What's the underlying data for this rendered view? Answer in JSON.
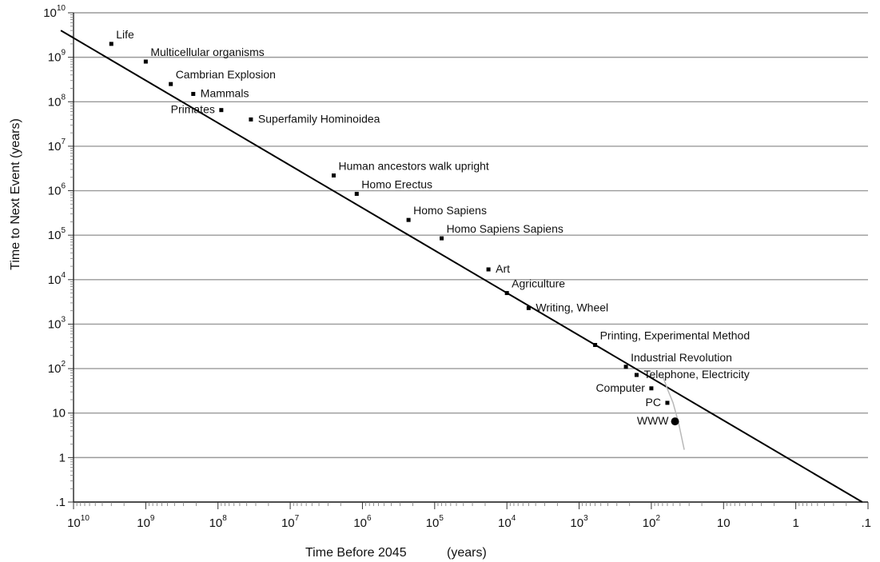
{
  "chart_data": {
    "type": "scatter",
    "title": "",
    "xlabel": "Time Before 2045",
    "xlabel_unit": "(years)",
    "ylabel": "Time to Next Event (years)",
    "x_scale": "log",
    "y_scale": "log",
    "x_reversed": true,
    "xlim": [
      10000000000,
      0.1
    ],
    "ylim": [
      0.1,
      10000000000
    ],
    "grid": "horizontal",
    "legend": "none",
    "x_ticks": [
      {
        "value": 10000000000,
        "base": "10",
        "exp": "10"
      },
      {
        "value": 1000000000,
        "base": "10",
        "exp": "9"
      },
      {
        "value": 100000000,
        "base": "10",
        "exp": "8"
      },
      {
        "value": 10000000,
        "base": "10",
        "exp": "7"
      },
      {
        "value": 1000000,
        "base": "10",
        "exp": "6"
      },
      {
        "value": 100000,
        "base": "10",
        "exp": "5"
      },
      {
        "value": 10000,
        "base": "10",
        "exp": "4"
      },
      {
        "value": 1000,
        "base": "10",
        "exp": "3"
      },
      {
        "value": 100,
        "base": "10",
        "exp": "2"
      },
      {
        "value": 10,
        "base": "10",
        "exp": ""
      },
      {
        "value": 1,
        "base": "1",
        "exp": ""
      },
      {
        "value": 0.1,
        "base": ".1",
        "exp": ""
      }
    ],
    "y_ticks": [
      {
        "value": 10000000000,
        "base": "10",
        "exp": "10"
      },
      {
        "value": 1000000000,
        "base": "10",
        "exp": "9"
      },
      {
        "value": 100000000,
        "base": "10",
        "exp": "8"
      },
      {
        "value": 10000000,
        "base": "10",
        "exp": "7"
      },
      {
        "value": 1000000,
        "base": "10",
        "exp": "6"
      },
      {
        "value": 100000,
        "base": "10",
        "exp": "5"
      },
      {
        "value": 10000,
        "base": "10",
        "exp": "4"
      },
      {
        "value": 1000,
        "base": "10",
        "exp": "3"
      },
      {
        "value": 100,
        "base": "10",
        "exp": "2"
      },
      {
        "value": 10,
        "base": "10",
        "exp": ""
      },
      {
        "value": 1,
        "base": "1",
        "exp": ""
      },
      {
        "value": 0.1,
        "base": ".1",
        "exp": ""
      }
    ],
    "trend_line": {
      "x": [
        15000000000,
        0.12
      ],
      "y": [
        4000000000,
        0.1
      ]
    },
    "pc_curve": {
      "x": [
        70,
        60,
        50,
        42,
        35
      ],
      "y": [
        70,
        35,
        17,
        6,
        1.5
      ]
    },
    "points": [
      {
        "label": "Life",
        "x": 3000000000,
        "y": 2000000000,
        "label_pos": "above-right",
        "marker": "square"
      },
      {
        "label": "Multicellular organisms",
        "x": 1000000000,
        "y": 800000000,
        "label_pos": "above-right",
        "marker": "square"
      },
      {
        "label": "Cambrian Explosion",
        "x": 450000000,
        "y": 250000000,
        "label_pos": "above-right",
        "marker": "square"
      },
      {
        "label": "Mammals",
        "x": 220000000,
        "y": 150000000,
        "label_pos": "right",
        "marker": "square"
      },
      {
        "label": "Primates",
        "x": 90000000,
        "y": 65000000,
        "label_pos": "left",
        "marker": "square"
      },
      {
        "label": "Superfamily Hominoidea",
        "x": 35000000,
        "y": 40000000,
        "label_pos": "right",
        "marker": "square"
      },
      {
        "label": "Human ancestors walk upright",
        "x": 2500000,
        "y": 2200000,
        "label_pos": "above-right",
        "marker": "square"
      },
      {
        "label": "Homo Erectus",
        "x": 1200000,
        "y": 850000,
        "label_pos": "above-right",
        "marker": "square"
      },
      {
        "label": "Homo Sapiens",
        "x": 230000,
        "y": 220000,
        "label_pos": "above-right",
        "marker": "square"
      },
      {
        "label": "Homo Sapiens Sapiens",
        "x": 80000,
        "y": 85000,
        "label_pos": "above-right",
        "marker": "square"
      },
      {
        "label": "Art",
        "x": 18000,
        "y": 17000,
        "label_pos": "right",
        "marker": "square"
      },
      {
        "label": "Agriculture",
        "x": 10000,
        "y": 5000,
        "label_pos": "above-right",
        "marker": "square"
      },
      {
        "label": "Writing, Wheel",
        "x": 5000,
        "y": 2300,
        "label_pos": "right",
        "marker": "square"
      },
      {
        "label": "Printing, Experimental Method",
        "x": 600,
        "y": 340,
        "label_pos": "above-right",
        "marker": "square"
      },
      {
        "label": "Industrial Revolution",
        "x": 225,
        "y": 110,
        "label_pos": "above-right",
        "marker": "square"
      },
      {
        "label": "Telephone, Electricity",
        "x": 160,
        "y": 72,
        "label_pos": "right",
        "marker": "square"
      },
      {
        "label": "Computer",
        "x": 100,
        "y": 36,
        "label_pos": "left",
        "marker": "square"
      },
      {
        "label": "PC",
        "x": 60,
        "y": 17,
        "label_pos": "left",
        "marker": "square"
      },
      {
        "label": "WWW",
        "x": 47,
        "y": 6.5,
        "label_pos": "left",
        "marker": "circle"
      }
    ]
  }
}
